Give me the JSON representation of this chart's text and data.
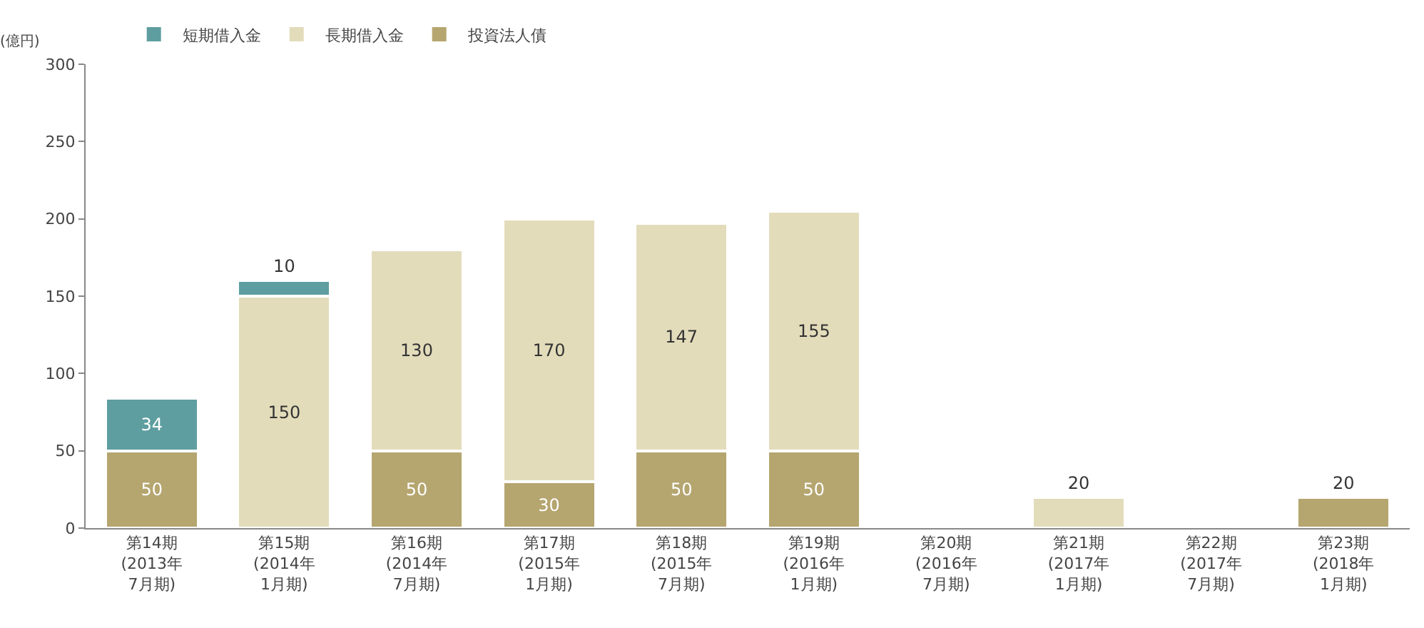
{
  "chart_data": {
    "type": "bar",
    "stacked": true,
    "ylabel": "(億円)",
    "legend": "top left",
    "grid": false,
    "categories": [
      "第14期\n(2013年\n7月期)",
      "第15期\n(2014年\n1月期)",
      "第16期\n(2014年\n7月期)",
      "第17期\n(2015年\n1月期)",
      "第18期\n(2015年\n7月期)",
      "第19期\n(2016年\n1月期)",
      "第20期\n(2016年\n7月期)",
      "第21期\n(2017年\n1月期)",
      "第22期\n(2017年\n7月期)",
      "第23期\n(2018年\n1月期)"
    ],
    "ylim": [
      0,
      300
    ],
    "yticks": [
      0,
      50,
      100,
      150,
      200,
      250,
      300
    ],
    "series": [
      {
        "name": "投資法人債",
        "color": "#b5a56f",
        "values": [
          50,
          null,
          50,
          30,
          50,
          50,
          null,
          null,
          null,
          20
        ],
        "value_labels": [
          "50",
          null,
          "50",
          "30",
          "50",
          "50",
          null,
          null,
          null,
          "20"
        ]
      },
      {
        "name": "長期借入金",
        "color": "#e3dcbb",
        "values": [
          null,
          150,
          130,
          170,
          147,
          155,
          null,
          20,
          null,
          null
        ],
        "value_labels": [
          null,
          "150",
          "130",
          "170",
          "147",
          "155",
          null,
          "20",
          null,
          null
        ]
      },
      {
        "name": "短期借入金",
        "color": "#5e9ea0",
        "values": [
          34,
          10,
          null,
          null,
          null,
          null,
          null,
          null,
          null,
          null
        ],
        "value_labels": [
          "34",
          "10",
          null,
          null,
          null,
          null,
          null,
          null,
          null,
          null
        ]
      }
    ]
  }
}
